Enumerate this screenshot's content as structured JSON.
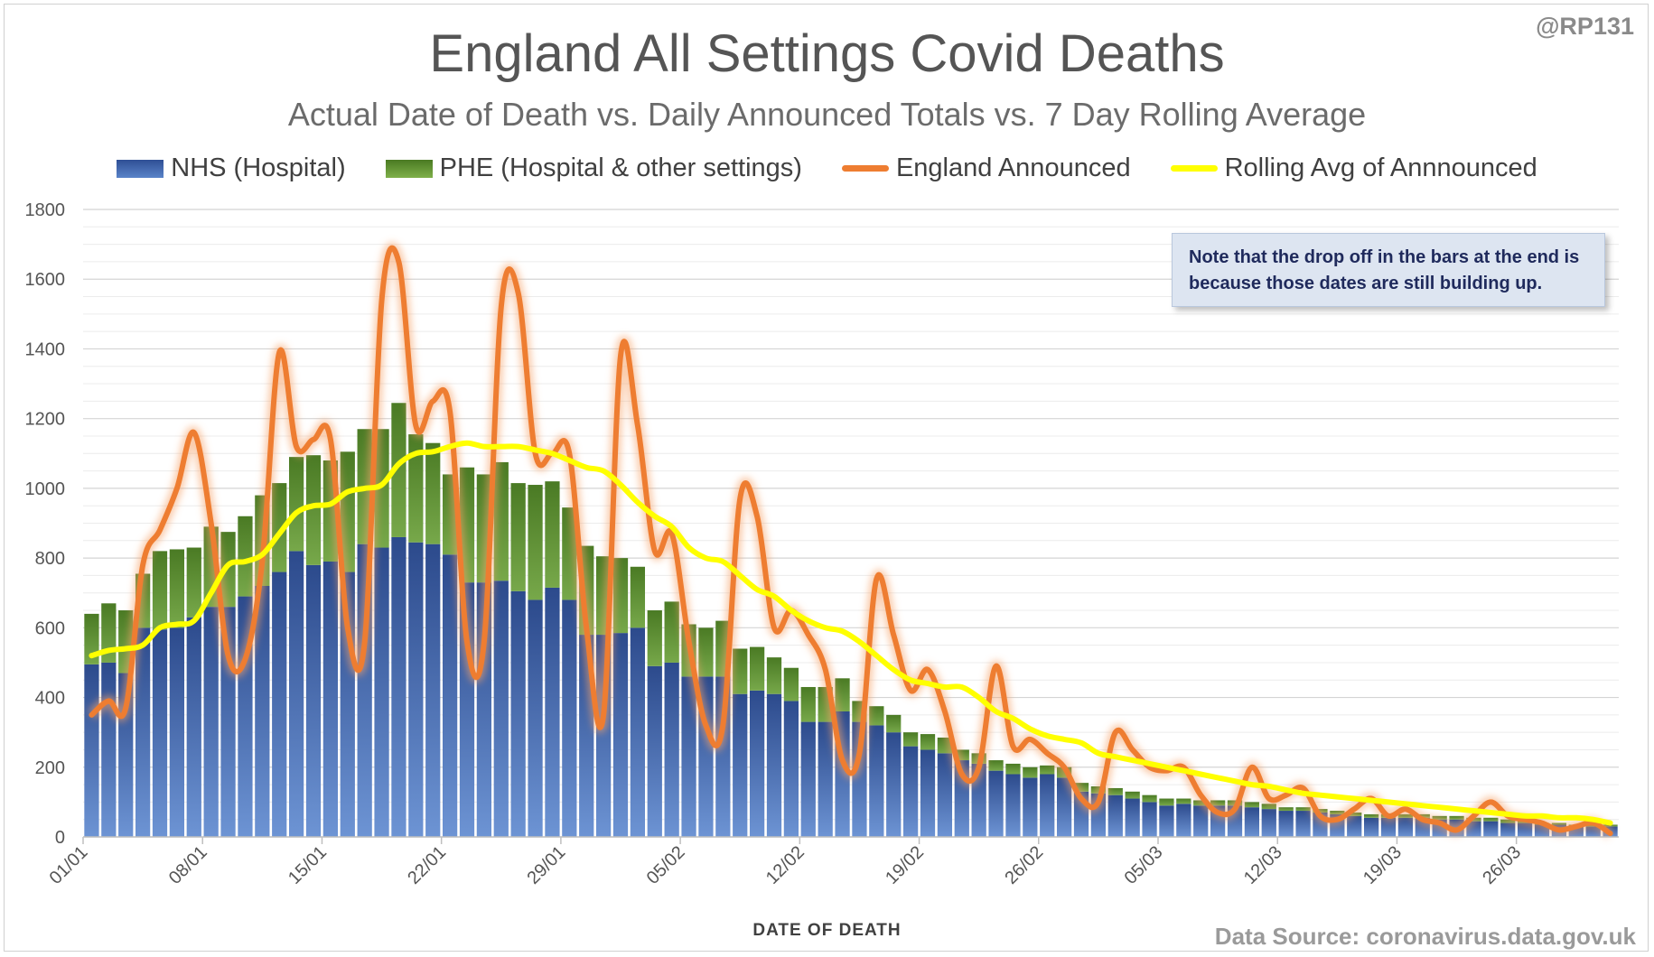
{
  "handle": "@RP131",
  "source": "Data Source: coronavirus.data.gov.uk",
  "note": "Note that the drop off in the bars at the end is because those dates are still building up.",
  "colors": {
    "nhs": "#3a5ea8",
    "phe": "#5b8c2e",
    "announced": "#ee7d31",
    "rolling": "#ffff00"
  },
  "chart_data": {
    "type": "bar",
    "title": "England All Settings Covid Deaths",
    "subtitle": "Actual Date of Death vs. Daily Announced Totals vs. 7 Day Rolling Average",
    "xlabel": "DATE OF DEATH",
    "ylabel": "",
    "ylim": [
      0,
      1800
    ],
    "yticks": [
      0,
      200,
      400,
      600,
      800,
      1000,
      1200,
      1400,
      1600,
      1800
    ],
    "grid": true,
    "legend_position": "top",
    "stacked": true,
    "categories": [
      "01/01",
      "02/01",
      "03/01",
      "04/01",
      "05/01",
      "06/01",
      "07/01",
      "08/01",
      "09/01",
      "10/01",
      "11/01",
      "12/01",
      "13/01",
      "14/01",
      "15/01",
      "16/01",
      "17/01",
      "18/01",
      "19/01",
      "20/01",
      "21/01",
      "22/01",
      "23/01",
      "24/01",
      "25/01",
      "26/01",
      "27/01",
      "28/01",
      "29/01",
      "30/01",
      "31/01",
      "01/02",
      "02/02",
      "03/02",
      "04/02",
      "05/02",
      "06/02",
      "07/02",
      "08/02",
      "09/02",
      "10/02",
      "11/02",
      "12/02",
      "13/02",
      "14/02",
      "15/02",
      "16/02",
      "17/02",
      "18/02",
      "19/02",
      "20/02",
      "21/02",
      "22/02",
      "23/02",
      "24/02",
      "25/02",
      "26/02",
      "27/02",
      "28/02",
      "01/03",
      "02/03",
      "03/03",
      "04/03",
      "05/03",
      "06/03",
      "07/03",
      "08/03",
      "09/03",
      "10/03",
      "11/03",
      "12/03",
      "13/03",
      "14/03",
      "15/03",
      "16/03",
      "17/03",
      "18/03",
      "19/03",
      "20/03",
      "21/03",
      "22/03",
      "23/03",
      "24/03",
      "25/03",
      "26/03",
      "27/03",
      "28/03",
      "29/03",
      "30/03",
      "31/03"
    ],
    "tick_labels": [
      "01/01",
      "08/01",
      "15/01",
      "22/01",
      "29/01",
      "05/02",
      "12/02",
      "19/02",
      "26/02",
      "05/03",
      "12/03",
      "19/03",
      "26/03"
    ],
    "series": [
      {
        "name": "NHS (Hospital)",
        "kind": "bar",
        "values": [
          495,
          500,
          470,
          600,
          595,
          600,
          630,
          660,
          660,
          690,
          720,
          760,
          820,
          780,
          790,
          760,
          840,
          830,
          860,
          845,
          840,
          810,
          730,
          730,
          735,
          705,
          680,
          715,
          680,
          580,
          580,
          585,
          600,
          490,
          500,
          460,
          460,
          460,
          410,
          420,
          410,
          390,
          330,
          330,
          360,
          330,
          320,
          300,
          260,
          250,
          240,
          220,
          210,
          190,
          180,
          170,
          180,
          170,
          130,
          125,
          120,
          110,
          100,
          90,
          95,
          90,
          90,
          90,
          85,
          80,
          75,
          75,
          70,
          65,
          60,
          55,
          55,
          55,
          55,
          50,
          50,
          45,
          45,
          40,
          40,
          35,
          35,
          30,
          30,
          30
        ]
      },
      {
        "name": "PHE (Hospital & other settings)",
        "kind": "bar",
        "values": [
          145,
          170,
          180,
          155,
          225,
          225,
          200,
          230,
          215,
          230,
          260,
          255,
          270,
          315,
          290,
          345,
          330,
          340,
          385,
          310,
          290,
          230,
          330,
          310,
          340,
          310,
          330,
          305,
          265,
          255,
          225,
          215,
          175,
          160,
          175,
          150,
          140,
          160,
          130,
          125,
          105,
          95,
          100,
          100,
          95,
          60,
          55,
          50,
          40,
          45,
          45,
          30,
          30,
          30,
          30,
          30,
          25,
          30,
          25,
          20,
          20,
          20,
          20,
          20,
          15,
          15,
          15,
          15,
          15,
          15,
          10,
          10,
          10,
          10,
          10,
          10,
          10,
          10,
          10,
          10,
          10,
          10,
          10,
          10,
          10,
          5,
          5,
          5,
          5,
          5
        ]
      },
      {
        "name": "England Announced",
        "kind": "line",
        "values": [
          350,
          390,
          370,
          780,
          880,
          1000,
          1160,
          900,
          520,
          510,
          790,
          1390,
          1120,
          1140,
          1140,
          600,
          560,
          1540,
          1650,
          1180,
          1250,
          1220,
          560,
          560,
          1520,
          1560,
          1100,
          1100,
          1100,
          600,
          350,
          1380,
          1180,
          820,
          870,
          560,
          320,
          320,
          970,
          920,
          600,
          650,
          580,
          480,
          220,
          240,
          740,
          580,
          420,
          480,
          360,
          180,
          200,
          490,
          260,
          280,
          240,
          200,
          110,
          100,
          300,
          250,
          200,
          190,
          200,
          120,
          70,
          80,
          200,
          110,
          120,
          140,
          60,
          50,
          80,
          110,
          60,
          80,
          50,
          40,
          20,
          60,
          100,
          60,
          50,
          40,
          20,
          30,
          40,
          10
        ]
      },
      {
        "name": "Rolling Avg of Annnounced",
        "kind": "line",
        "values": [
          520,
          535,
          540,
          550,
          600,
          610,
          620,
          700,
          780,
          790,
          810,
          870,
          930,
          950,
          955,
          990,
          1000,
          1010,
          1070,
          1100,
          1105,
          1120,
          1130,
          1120,
          1120,
          1120,
          1110,
          1100,
          1080,
          1060,
          1050,
          1010,
          960,
          920,
          890,
          830,
          800,
          790,
          750,
          710,
          690,
          650,
          620,
          600,
          590,
          560,
          520,
          480,
          450,
          440,
          430,
          430,
          400,
          360,
          340,
          310,
          290,
          280,
          270,
          240,
          230,
          220,
          210,
          200,
          190,
          180,
          170,
          160,
          150,
          145,
          135,
          125,
          120,
          115,
          110,
          105,
          100,
          95,
          90,
          85,
          80,
          75,
          70,
          65,
          60,
          60,
          55,
          55,
          50,
          40
        ]
      }
    ]
  }
}
